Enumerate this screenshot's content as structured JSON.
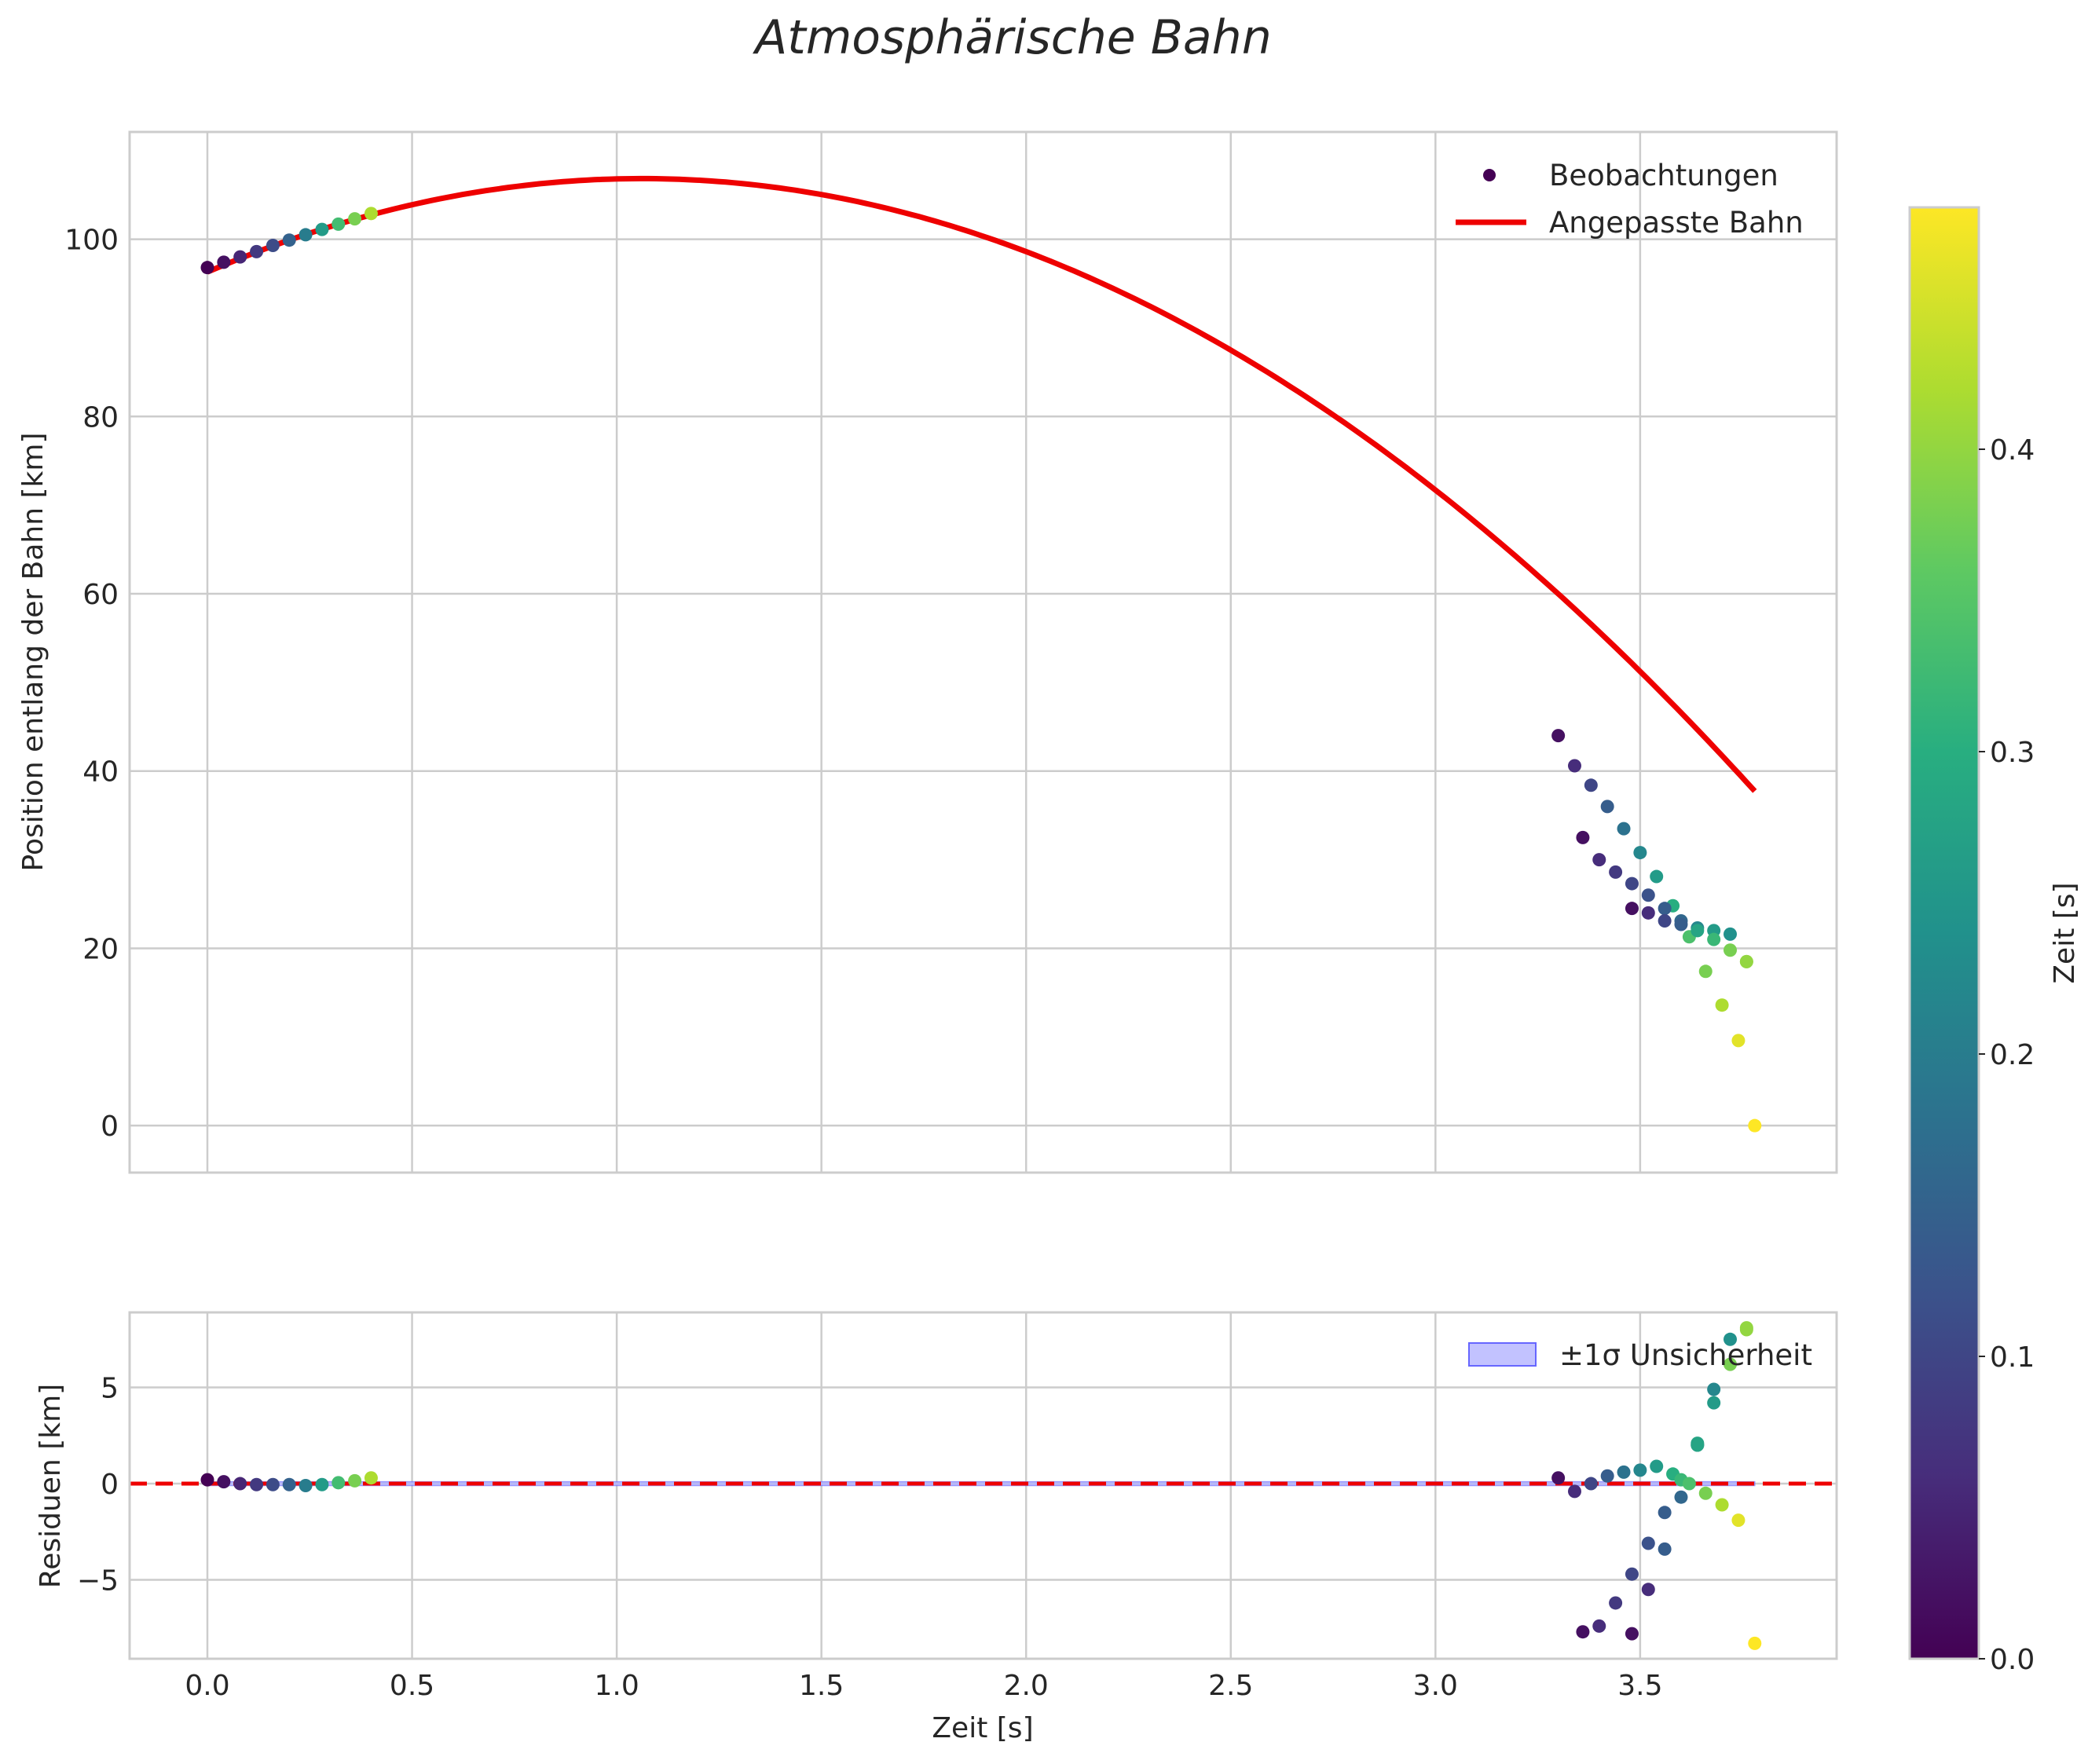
{
  "chart_data": {
    "title": "Atmosphärische Bahn",
    "xlabel": "Zeit [s]",
    "xlim": [
      -0.19,
      3.98
    ],
    "xticks": [
      "0.0",
      "0.5",
      "1.0",
      "1.5",
      "2.0",
      "2.5",
      "3.0",
      "3.5"
    ],
    "xtick_values": [
      0.0,
      0.5,
      1.0,
      1.5,
      2.0,
      2.5,
      3.0,
      3.5
    ],
    "colors": {
      "fit_line": "#ee0000",
      "uncertainty_band": "#b3b3ff",
      "grid": "#cccccc"
    },
    "top_panel": {
      "type": "scatter",
      "ylabel": "Position entlang der Bahn [km]",
      "ylim": [
        -5.3,
        112.1
      ],
      "yticks": [
        "0",
        "20",
        "40",
        "60",
        "80",
        "100"
      ],
      "ytick_values": [
        0,
        20,
        40,
        60,
        80,
        100
      ],
      "legend": {
        "position": "top-right",
        "entries": [
          "Beobachtungen",
          "Angepasste Bahn"
        ]
      },
      "fit_curve": {
        "name": "Angepasste Bahn",
        "coefficients": {
          "a": -9.35,
          "b": 19.85,
          "c": 96.3
        },
        "x_range": [
          0.0,
          3.78
        ]
      },
      "observations": {
        "name": "Beobachtungen",
        "x": [
          0.0,
          0.04,
          0.08,
          0.12,
          0.16,
          0.2,
          0.24,
          0.28,
          0.32,
          0.36,
          0.4,
          3.3,
          3.34,
          3.38,
          3.42,
          3.46,
          3.5,
          3.54,
          3.58,
          3.62,
          3.66,
          3.7,
          3.74,
          3.78,
          3.36,
          3.4,
          3.44,
          3.48,
          3.52,
          3.56,
          3.6,
          3.64,
          3.68,
          3.72,
          3.76,
          3.48,
          3.52,
          3.56,
          3.6,
          3.64,
          3.68,
          3.72,
          3.76
        ],
        "y": [
          96.8,
          97.4,
          98.0,
          98.6,
          99.3,
          99.9,
          100.5,
          101.1,
          101.7,
          102.3,
          102.9,
          44.0,
          40.6,
          38.4,
          36.0,
          33.5,
          30.8,
          28.1,
          24.8,
          21.3,
          17.4,
          13.6,
          9.6,
          0.0,
          32.5,
          30.0,
          28.6,
          27.3,
          26.0,
          24.5,
          23.1,
          22.3,
          22.0,
          21.6,
          18.5,
          24.5,
          24.0,
          23.1,
          22.7,
          22.0,
          21.0,
          19.8,
          18.5
        ],
        "c": [
          0.0,
          0.02,
          0.05,
          0.08,
          0.11,
          0.15,
          0.2,
          0.26,
          0.33,
          0.38,
          0.42,
          0.02,
          0.06,
          0.1,
          0.14,
          0.18,
          0.22,
          0.26,
          0.3,
          0.34,
          0.38,
          0.42,
          0.46,
          0.48,
          0.02,
          0.06,
          0.08,
          0.1,
          0.12,
          0.14,
          0.16,
          0.22,
          0.26,
          0.24,
          0.4,
          0.02,
          0.06,
          0.1,
          0.14,
          0.28,
          0.32,
          0.38,
          0.4
        ]
      }
    },
    "bottom_panel": {
      "type": "scatter",
      "ylabel": "Residuen [km]",
      "ylim": [
        -9.1,
        8.9
      ],
      "yticks": [
        "5",
        "0",
        "−5"
      ],
      "ytick_values": [
        5,
        0,
        -5
      ],
      "legend": {
        "position": "top-right",
        "entries": [
          "±1σ Unsicherheit"
        ]
      },
      "band_halfwidth": 0.1,
      "residuals": {
        "x": [
          0.0,
          0.04,
          0.08,
          0.12,
          0.16,
          0.2,
          0.24,
          0.28,
          0.32,
          0.36,
          0.4,
          3.3,
          3.34,
          3.38,
          3.42,
          3.46,
          3.5,
          3.54,
          3.58,
          3.6,
          3.62,
          3.64,
          3.66,
          3.7,
          3.74,
          3.78,
          3.36,
          3.4,
          3.44,
          3.48,
          3.52,
          3.56,
          3.6,
          3.64,
          3.68,
          3.72,
          3.76,
          3.48,
          3.52,
          3.56,
          3.64,
          3.68,
          3.72,
          3.76
        ],
        "y": [
          0.2,
          0.1,
          0.0,
          -0.05,
          -0.05,
          -0.05,
          -0.1,
          -0.05,
          0.05,
          0.15,
          0.3,
          0.3,
          -0.4,
          0.0,
          0.4,
          0.6,
          0.7,
          0.9,
          0.5,
          0.2,
          0.0,
          2.1,
          -0.5,
          -1.1,
          -1.9,
          -8.3,
          -7.7,
          -7.4,
          -6.2,
          -4.7,
          -3.1,
          -3.4,
          -0.7,
          2.0,
          4.2,
          7.5,
          8.0,
          -7.8,
          -5.5,
          -1.5,
          2.0,
          4.9,
          6.2,
          8.1
        ],
        "c": [
          0.0,
          0.02,
          0.05,
          0.08,
          0.11,
          0.15,
          0.2,
          0.26,
          0.33,
          0.38,
          0.42,
          0.02,
          0.06,
          0.1,
          0.14,
          0.18,
          0.22,
          0.26,
          0.3,
          0.32,
          0.34,
          0.28,
          0.38,
          0.42,
          0.46,
          0.48,
          0.02,
          0.06,
          0.08,
          0.1,
          0.12,
          0.14,
          0.16,
          0.22,
          0.26,
          0.24,
          0.4,
          0.02,
          0.06,
          0.14,
          0.28,
          0.22,
          0.38,
          0.4
        ]
      }
    },
    "colorbar": {
      "label": "Zeit [s]",
      "range": [
        0.0,
        0.48
      ],
      "ticks": [
        "0.0",
        "0.1",
        "0.2",
        "0.3",
        "0.4"
      ],
      "tick_values": [
        0.0,
        0.1,
        0.2,
        0.3,
        0.4
      ],
      "colormap": [
        "#440154",
        "#472d7b",
        "#3b528b",
        "#2c728e",
        "#21918c",
        "#28ae80",
        "#5ec962",
        "#addc30",
        "#fde725"
      ]
    }
  }
}
